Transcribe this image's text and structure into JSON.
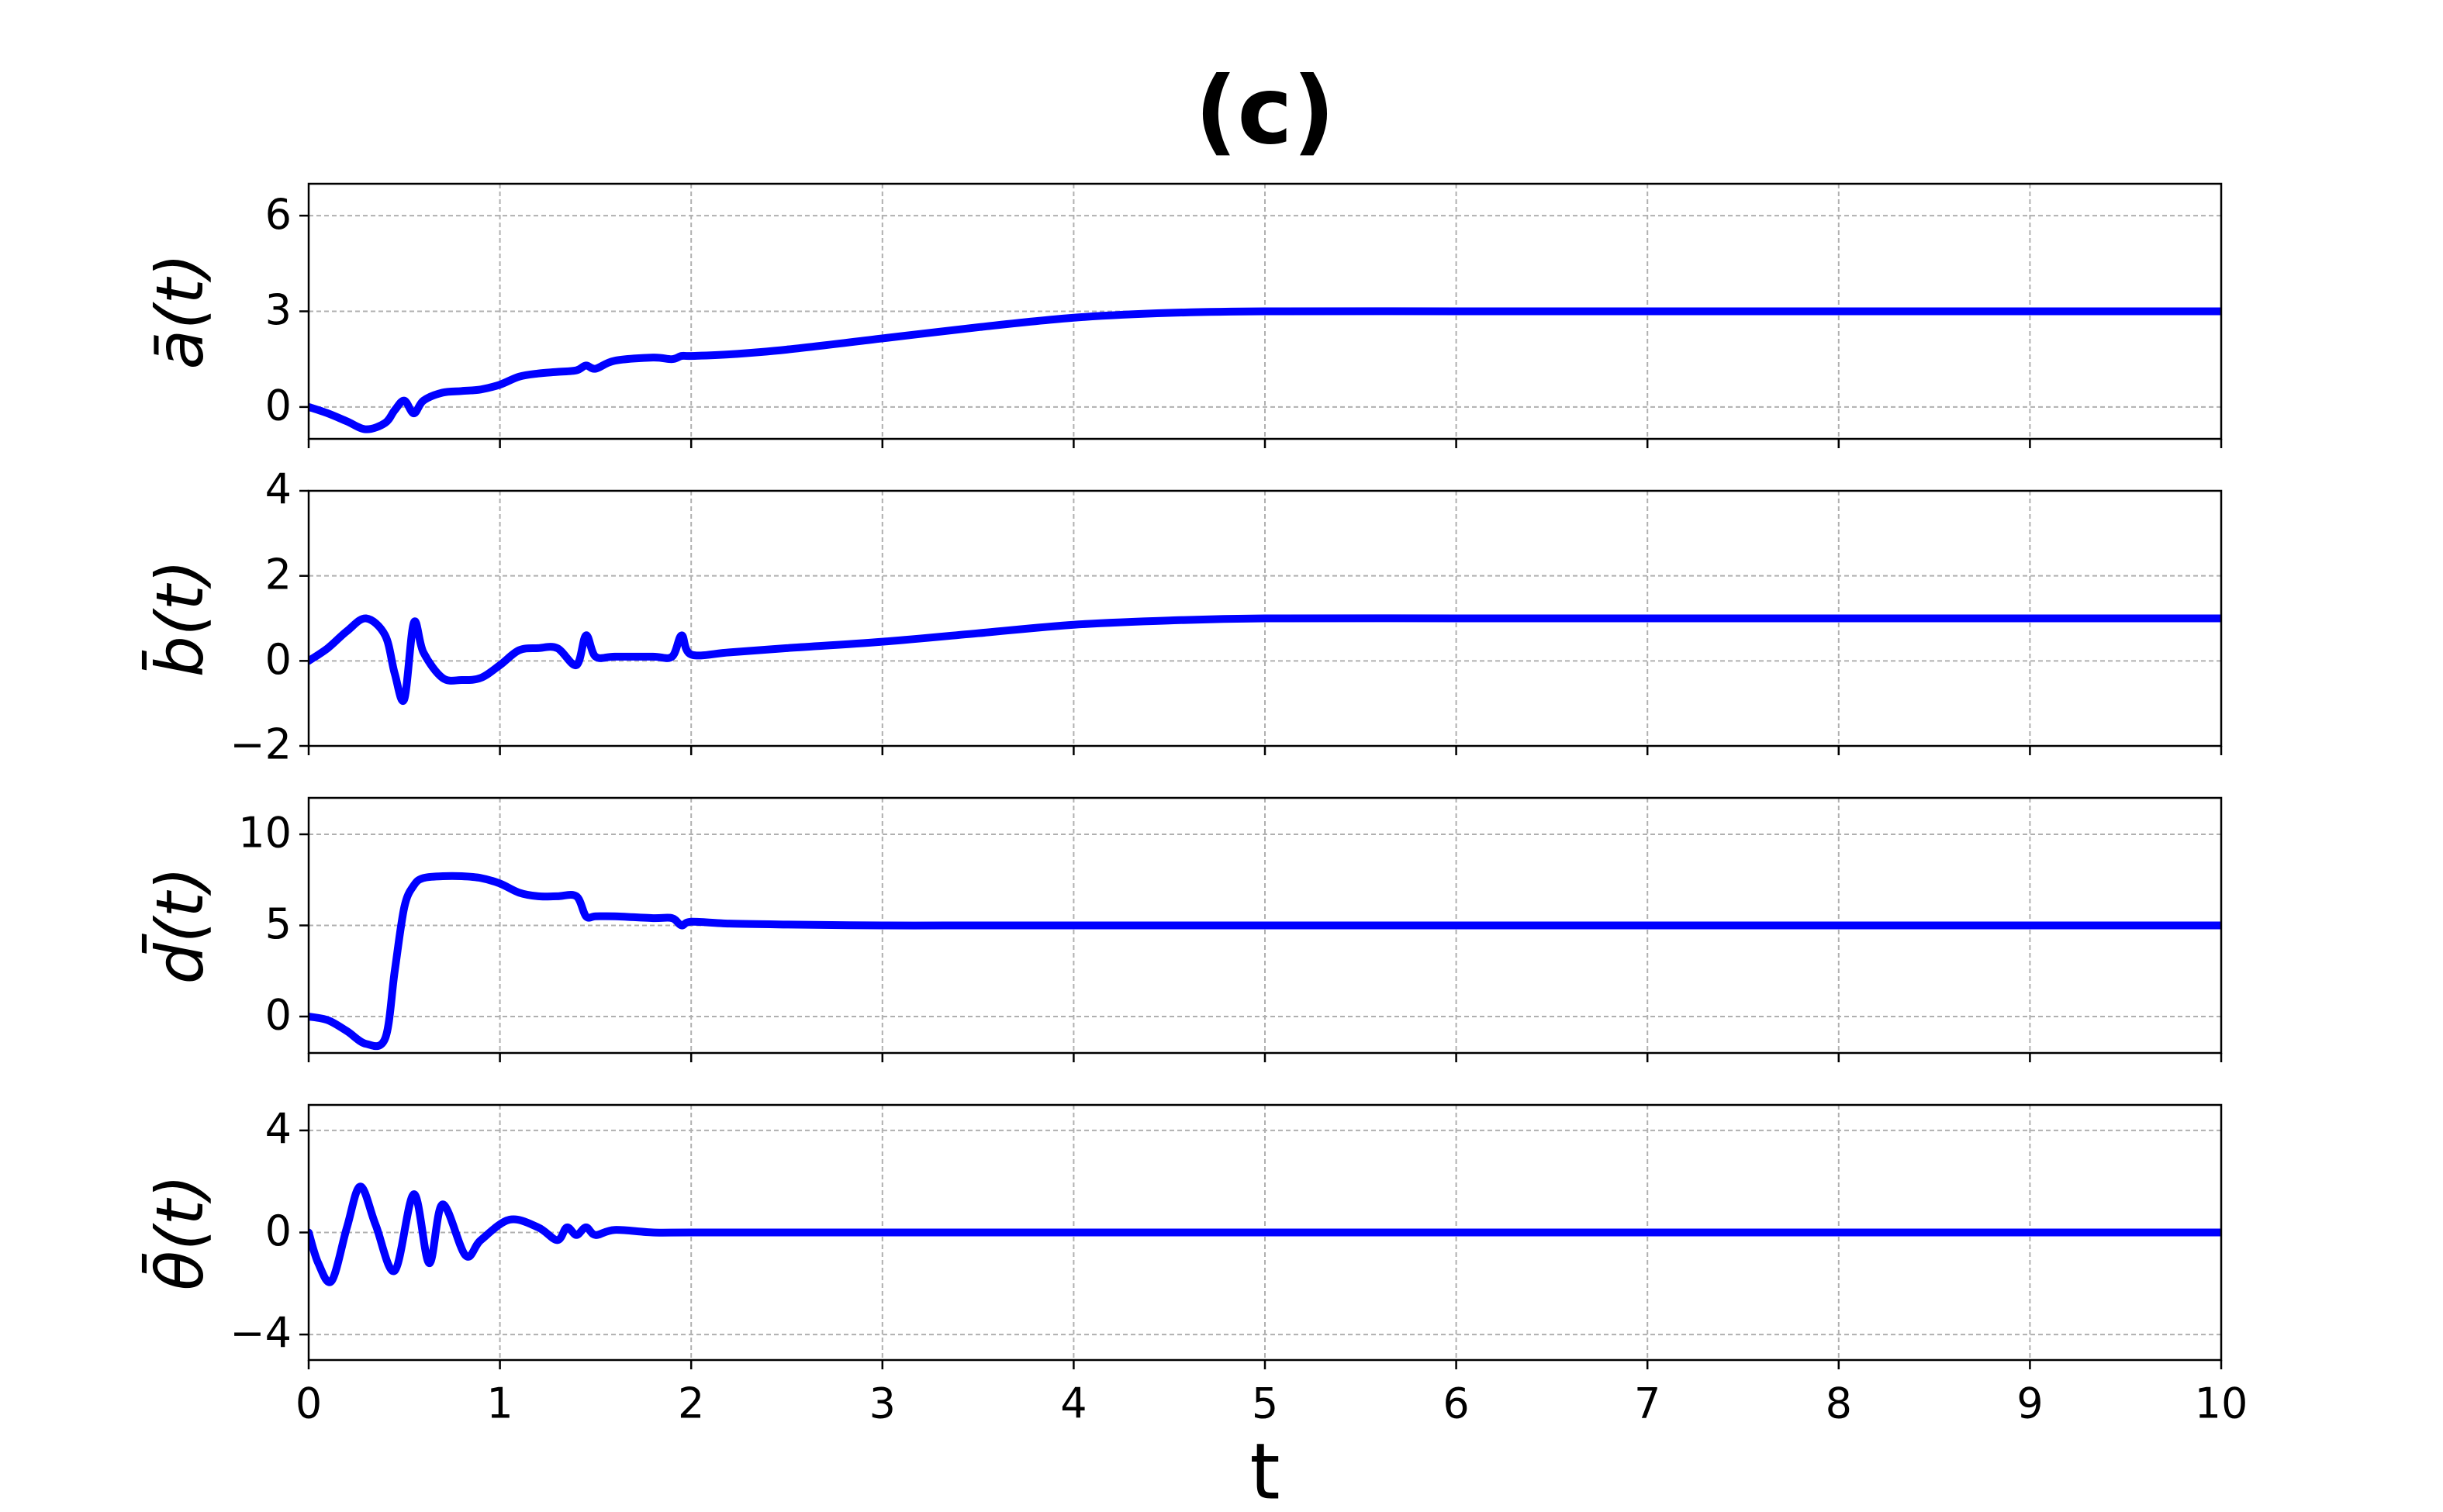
{
  "chart_data": [
    {
      "type": "line",
      "title": "(c)",
      "ylabel": "ā(t)",
      "color": "#0000ff",
      "grid": true,
      "x": [
        0,
        0.1,
        0.2,
        0.3,
        0.4,
        0.45,
        0.5,
        0.55,
        0.6,
        0.7,
        0.8,
        0.9,
        1.0,
        1.1,
        1.2,
        1.3,
        1.4,
        1.45,
        1.5,
        1.6,
        1.8,
        1.9,
        1.95,
        2.0,
        2.2,
        2.5,
        3,
        3.5,
        4,
        4.5,
        5,
        6,
        7,
        8,
        9,
        10
      ],
      "values": [
        0,
        -0.2,
        -0.45,
        -0.7,
        -0.5,
        -0.1,
        0.2,
        -0.2,
        0.2,
        0.45,
        0.5,
        0.55,
        0.7,
        0.95,
        1.05,
        1.1,
        1.15,
        1.3,
        1.2,
        1.45,
        1.55,
        1.5,
        1.6,
        1.6,
        1.65,
        1.8,
        2.15,
        2.5,
        2.8,
        2.95,
        3,
        3,
        3,
        3,
        3,
        3
      ],
      "xlim": [
        0,
        10
      ],
      "xticks": [
        0,
        1,
        2,
        3,
        4,
        5,
        6,
        7,
        8,
        9,
        10
      ],
      "ylim": [
        -1,
        7
      ],
      "yticks": [
        0,
        3,
        6
      ]
    },
    {
      "type": "line",
      "ylabel": "b̄(t)",
      "color": "#0000ff",
      "grid": true,
      "x": [
        0,
        0.1,
        0.2,
        0.3,
        0.4,
        0.45,
        0.5,
        0.55,
        0.6,
        0.7,
        0.8,
        0.9,
        1.0,
        1.1,
        1.2,
        1.3,
        1.4,
        1.45,
        1.5,
        1.6,
        1.8,
        1.9,
        1.95,
        2.0,
        2.2,
        2.5,
        3,
        3.5,
        4,
        4.5,
        5,
        6,
        7,
        8,
        9,
        10
      ],
      "values": [
        0,
        0.3,
        0.7,
        1.0,
        0.6,
        -0.3,
        -0.9,
        0.9,
        0.2,
        -0.4,
        -0.45,
        -0.4,
        -0.1,
        0.25,
        0.3,
        0.3,
        -0.1,
        0.6,
        0.1,
        0.1,
        0.1,
        0.1,
        0.6,
        0.15,
        0.2,
        0.3,
        0.45,
        0.65,
        0.85,
        0.95,
        1,
        1,
        1,
        1,
        1,
        1
      ],
      "xlim": [
        0,
        10
      ],
      "xticks": [
        0,
        1,
        2,
        3,
        4,
        5,
        6,
        7,
        8,
        9,
        10
      ],
      "ylim": [
        -2,
        4
      ],
      "yticks": [
        {
          "value": -2,
          "label": "−2"
        },
        0,
        2,
        4
      ]
    },
    {
      "type": "line",
      "ylabel": "d̄(t)",
      "color": "#0000ff",
      "grid": true,
      "x": [
        0,
        0.1,
        0.2,
        0.3,
        0.4,
        0.45,
        0.5,
        0.55,
        0.6,
        0.7,
        0.8,
        0.9,
        1.0,
        1.1,
        1.2,
        1.3,
        1.4,
        1.45,
        1.5,
        1.6,
        1.8,
        1.9,
        1.95,
        2.0,
        2.2,
        2.5,
        3,
        3.5,
        4,
        4.5,
        5,
        6,
        7,
        8,
        9,
        10
      ],
      "values": [
        0,
        -0.2,
        -0.8,
        -1.5,
        -1.2,
        2.5,
        6.0,
        7.2,
        7.6,
        7.7,
        7.7,
        7.6,
        7.3,
        6.8,
        6.6,
        6.6,
        6.6,
        5.5,
        5.5,
        5.5,
        5.4,
        5.4,
        5.0,
        5.2,
        5.1,
        5.05,
        5,
        5,
        5,
        5,
        5,
        5,
        5,
        5,
        5,
        5
      ],
      "xlim": [
        0,
        10
      ],
      "xticks": [
        0,
        1,
        2,
        3,
        4,
        5,
        6,
        7,
        8,
        9,
        10
      ],
      "ylim": [
        -2,
        12
      ],
      "yticks": [
        0,
        5,
        10
      ]
    },
    {
      "type": "line",
      "ylabel": "θ̄(t)",
      "xlabel": "t",
      "color": "#0000ff",
      "grid": true,
      "x": [
        0,
        0.05,
        0.12,
        0.2,
        0.27,
        0.35,
        0.45,
        0.55,
        0.63,
        0.7,
        0.82,
        0.9,
        1.05,
        1.2,
        1.3,
        1.35,
        1.4,
        1.45,
        1.5,
        1.6,
        1.8,
        2,
        3,
        10
      ],
      "values": [
        0,
        -1.2,
        -1.9,
        0.2,
        1.8,
        0.3,
        -1.5,
        1.5,
        -1.2,
        1.1,
        -0.9,
        -0.3,
        0.5,
        0.2,
        -0.3,
        0.2,
        -0.1,
        0.2,
        -0.1,
        0.1,
        0,
        0,
        0,
        0
      ],
      "xlim": [
        0,
        10
      ],
      "xticks": [
        0,
        1,
        2,
        3,
        4,
        5,
        6,
        7,
        8,
        9,
        10
      ],
      "ylim": [
        -5,
        5
      ],
      "yticks": [
        {
          "value": -4,
          "label": "−4"
        },
        0,
        4
      ]
    }
  ]
}
